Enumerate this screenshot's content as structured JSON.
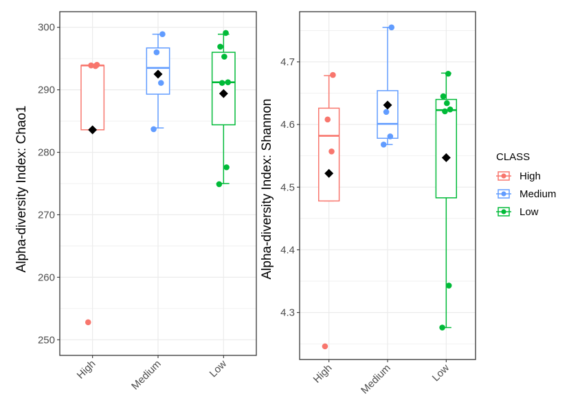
{
  "chart_data": [
    {
      "type": "box",
      "title": "",
      "xlabel": "",
      "ylabel": "Alpha-diversity Index: Chao1",
      "ylim": [
        247.5,
        302.5
      ],
      "yticks": [
        250,
        260,
        270,
        280,
        290,
        300
      ],
      "ytick_labels": [
        "250",
        "260",
        "270",
        "280",
        "290",
        "300"
      ],
      "categories": [
        "High",
        "Medium",
        "Low"
      ],
      "grid": true,
      "boxes": [
        {
          "class": "High",
          "min": 283.6,
          "q1": 283.6,
          "median": 293.9,
          "q3": 293.9,
          "max": 293.9,
          "mean": 283.6,
          "points": [
            252.8,
            293.8,
            293.9,
            294.0
          ]
        },
        {
          "class": "Medium",
          "min": 283.9,
          "q1": 289.3,
          "median": 293.5,
          "q3": 296.7,
          "max": 298.9,
          "mean": 292.5,
          "points": [
            283.7,
            291.1,
            296.0,
            298.9
          ]
        },
        {
          "class": "Low",
          "min": 275.0,
          "q1": 284.4,
          "median": 291.2,
          "q3": 296.0,
          "max": 298.9,
          "mean": 289.4,
          "points": [
            274.9,
            277.6,
            291.1,
            291.2,
            295.3,
            296.9,
            299.1
          ]
        }
      ]
    },
    {
      "type": "box",
      "title": "",
      "xlabel": "",
      "ylabel": "Alpha-diversity Index: Shannon",
      "ylim": [
        4.225,
        4.78
      ],
      "yticks": [
        4.3,
        4.4,
        4.5,
        4.6,
        4.7
      ],
      "ytick_labels": [
        "4.3",
        "4.4",
        "4.5",
        "4.6",
        "4.7"
      ],
      "categories": [
        "High",
        "Medium",
        "Low"
      ],
      "grid": true,
      "boxes": [
        {
          "class": "High",
          "min": 4.478,
          "q1": 4.478,
          "median": 4.582,
          "q3": 4.626,
          "max": 4.678,
          "mean": 4.522,
          "points": [
            4.246,
            4.557,
            4.608,
            4.679
          ]
        },
        {
          "class": "Medium",
          "min": 4.568,
          "q1": 4.578,
          "median": 4.601,
          "q3": 4.654,
          "max": 4.755,
          "mean": 4.631,
          "points": [
            4.568,
            4.581,
            4.62,
            4.755
          ]
        },
        {
          "class": "Low",
          "min": 4.276,
          "q1": 4.483,
          "median": 4.623,
          "q3": 4.64,
          "max": 4.682,
          "mean": 4.547,
          "points": [
            4.276,
            4.343,
            4.621,
            4.624,
            4.634,
            4.645,
            4.681
          ]
        }
      ]
    }
  ],
  "legend": {
    "title": "CLASS",
    "position": "right",
    "items": [
      {
        "label": "High",
        "color": "#F8766D"
      },
      {
        "label": "Medium",
        "color": "#619CFF"
      },
      {
        "label": "Low",
        "color": "#00BA38"
      }
    ]
  },
  "colors": {
    "High": "#F8766D",
    "Medium": "#619CFF",
    "Low": "#00BA38",
    "mean_marker": "#000000",
    "grid": "#ebebeb",
    "panel_border": "#333333"
  }
}
